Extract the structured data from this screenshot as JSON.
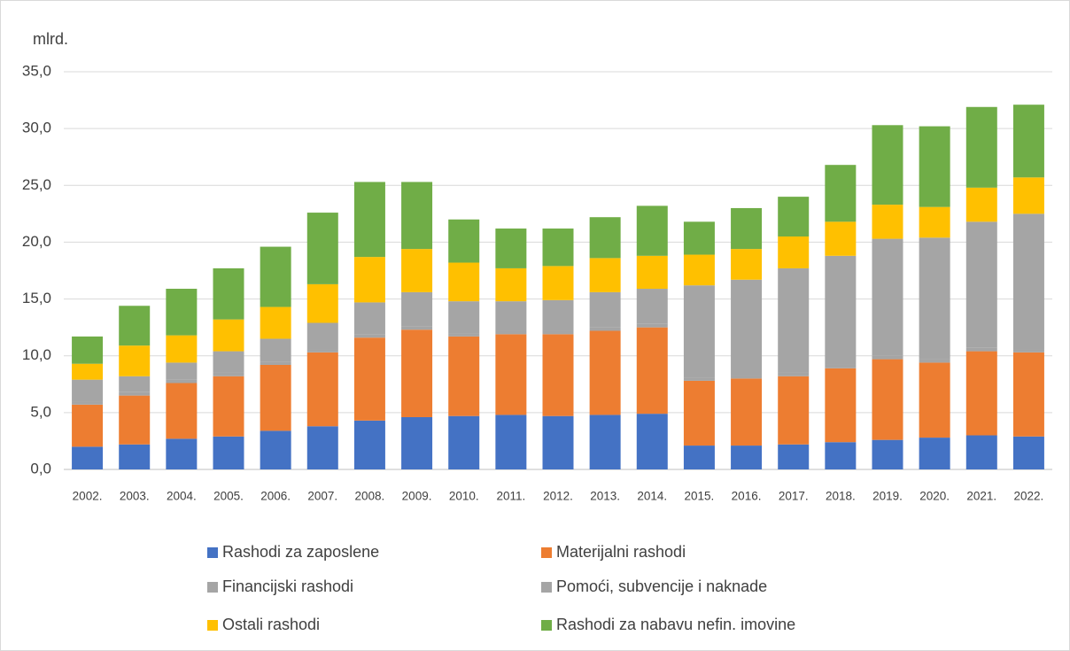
{
  "chart_data": {
    "type": "stacked_bar",
    "ylabel": "mlrd.",
    "categories": [
      "2002.",
      "2003.",
      "2004.",
      "2005.",
      "2006.",
      "2007.",
      "2008.",
      "2009.",
      "2010.",
      "2011.",
      "2012.",
      "2013.",
      "2014.",
      "2015.",
      "2016.",
      "2017.",
      "2018.",
      "2019.",
      "2020.",
      "2021.",
      "2022."
    ],
    "series": [
      {
        "name": "Rashodi za zaposlene",
        "color": "#4472c4",
        "values": [
          2.0,
          2.2,
          2.7,
          2.9,
          3.4,
          3.8,
          4.3,
          4.6,
          4.7,
          4.8,
          4.7,
          4.8,
          4.9,
          2.1,
          2.1,
          2.2,
          2.4,
          2.6,
          2.8,
          3.0,
          2.9
        ]
      },
      {
        "name": "Materijalni rashodi",
        "color": "#ed7d31",
        "values": [
          3.7,
          4.3,
          4.9,
          5.3,
          5.8,
          6.5,
          7.3,
          7.7,
          7.0,
          7.1,
          7.2,
          7.4,
          7.6,
          5.7,
          5.9,
          6.0,
          6.5,
          7.1,
          6.6,
          7.4,
          7.4
        ]
      },
      {
        "name": "Financijski rashodi",
        "color": "#a5a5a5",
        "values": [
          0.3,
          0.3,
          0.3,
          0.3,
          0.3,
          0.3,
          0.3,
          0.3,
          0.3,
          0.3,
          0.3,
          0.3,
          0.3,
          0.3,
          0.3,
          0.3,
          0.3,
          0.3,
          0.3,
          0.3,
          0.3
        ]
      },
      {
        "name": "Pomoći, subvencije i naknade",
        "color": "#a5a5a5",
        "values": [
          1.9,
          1.4,
          1.5,
          1.9,
          2.0,
          2.3,
          2.8,
          3.0,
          2.8,
          2.6,
          2.7,
          3.1,
          3.1,
          8.1,
          8.4,
          9.2,
          9.6,
          10.3,
          10.7,
          11.1,
          11.9
        ]
      },
      {
        "name": "Ostali rashodi",
        "color": "#ffc000",
        "values": [
          1.4,
          2.7,
          2.4,
          2.8,
          2.8,
          3.4,
          4.0,
          3.8,
          3.4,
          2.9,
          3.0,
          3.0,
          2.9,
          2.7,
          2.7,
          2.8,
          3.0,
          3.0,
          2.7,
          3.0,
          3.2
        ]
      },
      {
        "name": "Rashodi za nabavu nefin. imovine",
        "color": "#70ad47",
        "values": [
          2.4,
          3.5,
          4.1,
          4.5,
          5.3,
          6.3,
          6.6,
          5.9,
          3.8,
          3.5,
          3.3,
          3.6,
          4.4,
          2.9,
          3.6,
          3.5,
          5.0,
          7.0,
          7.1,
          7.1,
          6.4
        ]
      }
    ],
    "ylim": [
      0,
      35
    ],
    "yticks": [
      {
        "value": 0,
        "label": "0,0"
      },
      {
        "value": 5,
        "label": "5,0"
      },
      {
        "value": 10,
        "label": "10,0"
      },
      {
        "value": 15,
        "label": "15,0"
      },
      {
        "value": 20,
        "label": "20,0"
      },
      {
        "value": 25,
        "label": "25,0"
      },
      {
        "value": 30,
        "label": "30,0"
      },
      {
        "value": 35,
        "label": "35,0"
      }
    ],
    "grid": true
  }
}
